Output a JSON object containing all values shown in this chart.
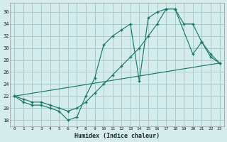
{
  "xlabel": "Humidex (Indice chaleur)",
  "bg_color": "#d4ecec",
  "grid_color": "#aacccc",
  "line_color": "#1a7a6a",
  "xlim": [
    -0.5,
    23.5
  ],
  "ylim": [
    17,
    37.5
  ],
  "xticks": [
    0,
    1,
    2,
    3,
    4,
    5,
    6,
    7,
    8,
    9,
    10,
    11,
    12,
    13,
    14,
    15,
    16,
    17,
    18,
    19,
    20,
    21,
    22,
    23
  ],
  "yticks": [
    18,
    20,
    22,
    24,
    26,
    28,
    30,
    32,
    34,
    36
  ],
  "line1_x": [
    0,
    1,
    2,
    3,
    4,
    5,
    6,
    7,
    8,
    9,
    10,
    11,
    12,
    13,
    14,
    15,
    16,
    17,
    18,
    19,
    20,
    21,
    22,
    23
  ],
  "line1_y": [
    22,
    21.5,
    21,
    21,
    20.5,
    20,
    19.5,
    20,
    21,
    22.5,
    24,
    25.5,
    27,
    28.5,
    30,
    32,
    34,
    36.5,
    36.5,
    34,
    34,
    31,
    29,
    27.5
  ],
  "line2_x": [
    0,
    1,
    2,
    3,
    4,
    5,
    6,
    7,
    8,
    9,
    10,
    11,
    12,
    13,
    14,
    15,
    16,
    17,
    18,
    20,
    21,
    22,
    23
  ],
  "line2_y": [
    22,
    21,
    20.5,
    20.5,
    20,
    19.5,
    18,
    18.5,
    22,
    25,
    30.5,
    32,
    33,
    34,
    24.5,
    35,
    36,
    36.5,
    36.5,
    29,
    31,
    28.5,
    27.5
  ],
  "line3_x": [
    0,
    23
  ],
  "line3_y": [
    22,
    27.5
  ]
}
